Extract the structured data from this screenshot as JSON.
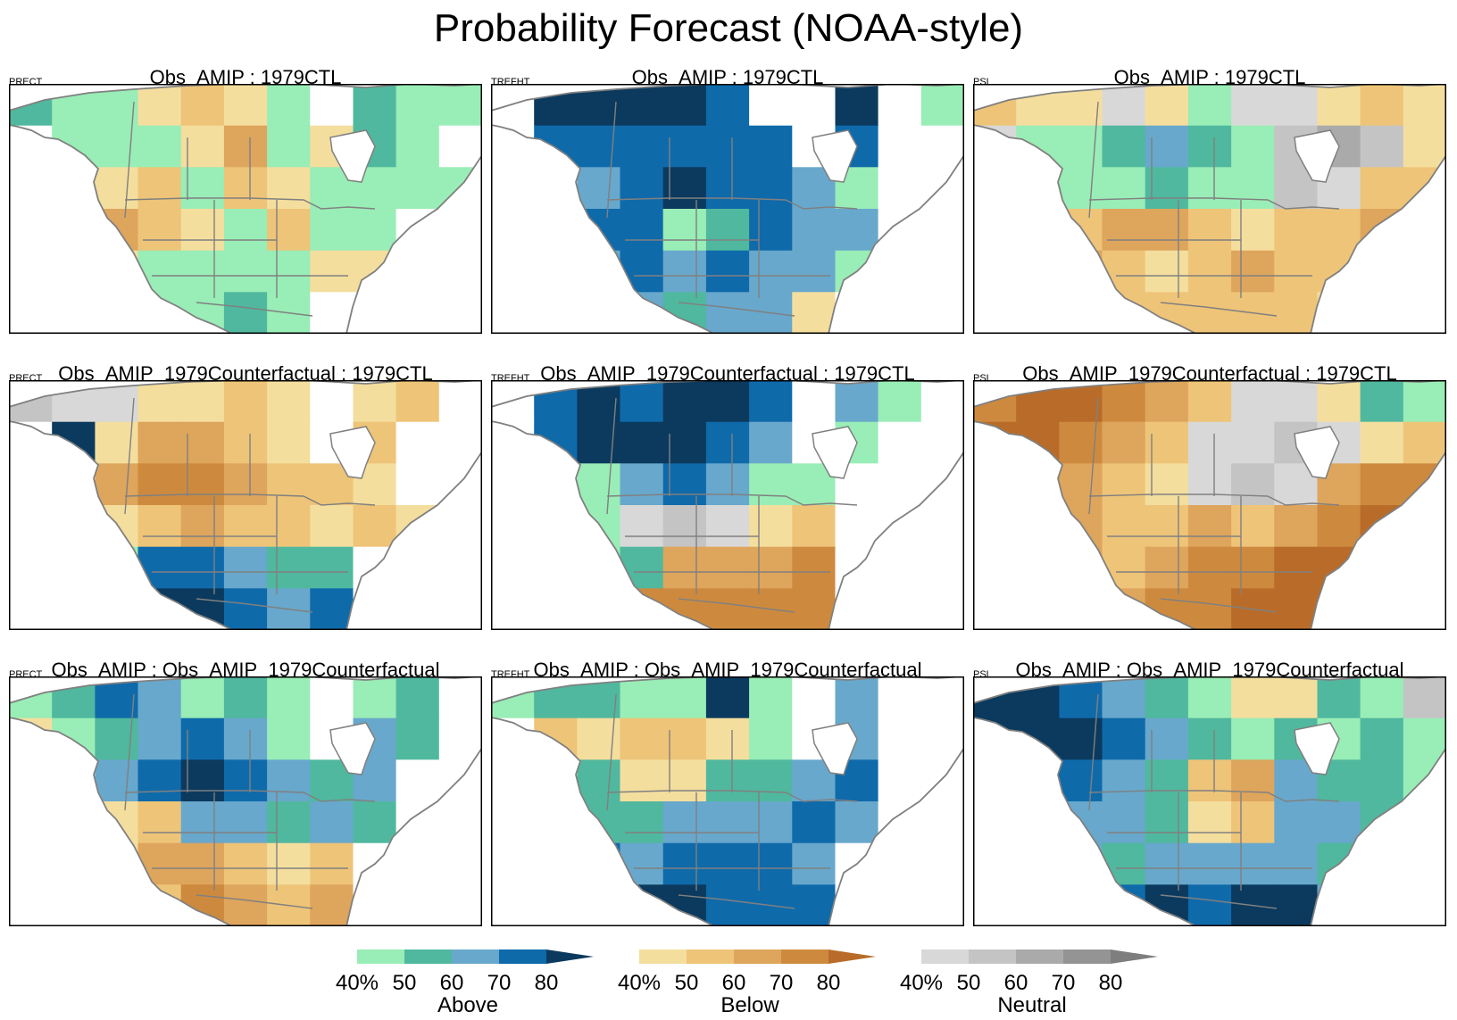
{
  "title": "Probability Forecast (NOAA-style)",
  "colors": {
    "above": [
      "#99EDB6",
      "#50B89E",
      "#68A8CC",
      "#0F6AAA",
      "#0B3A5E"
    ],
    "below": [
      "#F4DE9E",
      "#EEC478",
      "#DEA55C",
      "#CD8A3E",
      "#B96C29"
    ],
    "neutral": [
      "#D8D8D8",
      "#C4C4C4",
      "#AAAAAA",
      "#949494",
      "#7E7E7E"
    ],
    "land": "#ffffff",
    "border": "#808080",
    "frame": "#000000"
  },
  "panels": [
    {
      "title": "Obs_AMIP : 1979CTL",
      "variable": "PRECT",
      "field": [
        [
          2,
          1,
          1,
          6,
          7,
          6,
          1,
          0,
          2,
          1,
          1
        ],
        [
          0,
          1,
          1,
          1,
          6,
          8,
          1,
          6,
          2,
          1,
          0
        ],
        [
          0,
          6,
          6,
          7,
          1,
          7,
          6,
          1,
          1,
          1,
          1
        ],
        [
          0,
          0,
          8,
          7,
          6,
          1,
          7,
          1,
          1,
          0,
          0
        ],
        [
          0,
          0,
          6,
          1,
          1,
          1,
          1,
          6,
          6,
          0,
          0
        ],
        [
          0,
          0,
          0,
          1,
          1,
          2,
          1,
          0,
          0,
          0,
          0
        ]
      ]
    },
    {
      "title": "Obs_AMIP : 1979CTL",
      "variable": "TREFHT",
      "field": [
        [
          0,
          5,
          5,
          5,
          5,
          4,
          0,
          0,
          5,
          0,
          1
        ],
        [
          0,
          4,
          4,
          4,
          4,
          4,
          4,
          0,
          4,
          0,
          0
        ],
        [
          0,
          0,
          3,
          4,
          5,
          4,
          4,
          3,
          1,
          0,
          0
        ],
        [
          0,
          0,
          4,
          4,
          1,
          2,
          4,
          3,
          3,
          0,
          0
        ],
        [
          0,
          0,
          3,
          4,
          3,
          4,
          3,
          3,
          1,
          0,
          0
        ],
        [
          0,
          0,
          0,
          3,
          2,
          3,
          3,
          6,
          0,
          0,
          0
        ]
      ]
    },
    {
      "title": "Obs_AMIP : 1979CTL",
      "variable": "PSL",
      "field": [
        [
          7,
          6,
          6,
          11,
          6,
          1,
          11,
          11,
          6,
          7,
          6
        ],
        [
          11,
          1,
          1,
          2,
          3,
          2,
          1,
          12,
          13,
          12,
          6
        ],
        [
          12,
          11,
          1,
          1,
          2,
          1,
          1,
          12,
          11,
          7,
          7
        ],
        [
          7,
          7,
          7,
          8,
          8,
          7,
          6,
          7,
          7,
          8,
          7
        ],
        [
          7,
          8,
          8,
          7,
          6,
          7,
          8,
          7,
          7,
          7,
          8
        ],
        [
          7,
          7,
          7,
          7,
          7,
          7,
          7,
          7,
          6,
          7,
          7
        ]
      ]
    },
    {
      "title": "Obs_AMIP_1979Counterfactual : 1979CTL",
      "variable": "PRECT",
      "field": [
        [
          12,
          11,
          11,
          6,
          6,
          7,
          6,
          0,
          6,
          7,
          0
        ],
        [
          0,
          5,
          6,
          8,
          8,
          7,
          6,
          0,
          7,
          0,
          0
        ],
        [
          0,
          0,
          8,
          9,
          9,
          8,
          7,
          7,
          6,
          0,
          0
        ],
        [
          0,
          0,
          6,
          7,
          8,
          7,
          7,
          6,
          7,
          6,
          0
        ],
        [
          0,
          0,
          1,
          4,
          4,
          3,
          2,
          2,
          0,
          0,
          0
        ],
        [
          0,
          0,
          0,
          5,
          5,
          4,
          3,
          4,
          0,
          0,
          0
        ]
      ]
    },
    {
      "title": "Obs_AMIP_1979Counterfactual : 1979CTL",
      "variable": "TREFHT",
      "field": [
        [
          0,
          4,
          5,
          4,
          5,
          5,
          4,
          0,
          3,
          1,
          0
        ],
        [
          0,
          4,
          5,
          5,
          5,
          4,
          3,
          0,
          1,
          0,
          0
        ],
        [
          0,
          0,
          1,
          3,
          4,
          3,
          1,
          1,
          0,
          0,
          0
        ],
        [
          0,
          0,
          1,
          11,
          12,
          11,
          6,
          7,
          0,
          0,
          0
        ],
        [
          0,
          0,
          1,
          2,
          8,
          8,
          8,
          9,
          0,
          0,
          0
        ],
        [
          0,
          0,
          0,
          9,
          9,
          9,
          9,
          9,
          0,
          0,
          0
        ]
      ]
    },
    {
      "title": "Obs_AMIP_1979Counterfactual : 1979CTL",
      "variable": "PSL",
      "field": [
        [
          9,
          10,
          10,
          9,
          8,
          7,
          11,
          11,
          6,
          2,
          1
        ],
        [
          10,
          10,
          9,
          8,
          7,
          11,
          11,
          12,
          11,
          6,
          7
        ],
        [
          10,
          9,
          8,
          7,
          6,
          11,
          12,
          11,
          8,
          9,
          9
        ],
        [
          10,
          9,
          8,
          7,
          7,
          8,
          7,
          8,
          9,
          10,
          10
        ],
        [
          9,
          8,
          8,
          7,
          8,
          9,
          9,
          10,
          10,
          10,
          10
        ],
        [
          9,
          8,
          8,
          8,
          9,
          9,
          10,
          10,
          10,
          10,
          9
        ]
      ]
    },
    {
      "title": "Obs_AMIP : Obs_AMIP_1979Counterfactual",
      "variable": "PRECT",
      "field": [
        [
          1,
          2,
          4,
          3,
          1,
          2,
          1,
          0,
          1,
          2,
          0
        ],
        [
          6,
          1,
          2,
          3,
          4,
          3,
          1,
          0,
          3,
          2,
          0
        ],
        [
          0,
          0,
          3,
          4,
          5,
          4,
          3,
          2,
          3,
          0,
          0
        ],
        [
          0,
          0,
          6,
          7,
          3,
          3,
          2,
          3,
          2,
          0,
          0
        ],
        [
          0,
          0,
          6,
          8,
          8,
          7,
          6,
          7,
          0,
          0,
          0
        ],
        [
          0,
          0,
          0,
          7,
          9,
          8,
          7,
          8,
          0,
          0,
          0
        ]
      ]
    },
    {
      "title": "Obs_AMIP : Obs_AMIP_1979Counterfactual",
      "variable": "TREFHT",
      "field": [
        [
          1,
          2,
          2,
          1,
          1,
          5,
          1,
          0,
          3,
          0,
          0
        ],
        [
          0,
          7,
          6,
          7,
          7,
          6,
          1,
          0,
          3,
          0,
          0
        ],
        [
          0,
          0,
          2,
          6,
          6,
          2,
          2,
          3,
          4,
          0,
          0
        ],
        [
          0,
          0,
          2,
          2,
          3,
          3,
          3,
          4,
          3,
          0,
          0
        ],
        [
          0,
          0,
          4,
          3,
          4,
          4,
          4,
          3,
          0,
          0,
          0
        ],
        [
          0,
          0,
          0,
          5,
          5,
          4,
          4,
          4,
          0,
          0,
          0
        ]
      ]
    },
    {
      "title": "Obs_AMIP : Obs_AMIP_1979Counterfactual",
      "variable": "PSL",
      "field": [
        [
          5,
          5,
          4,
          3,
          2,
          1,
          6,
          6,
          2,
          1,
          12
        ],
        [
          5,
          5,
          5,
          4,
          3,
          2,
          1,
          2,
          1,
          2,
          1
        ],
        [
          5,
          5,
          4,
          3,
          2,
          7,
          8,
          3,
          2,
          2,
          1
        ],
        [
          4,
          4,
          3,
          3,
          2,
          6,
          7,
          3,
          3,
          2,
          2
        ],
        [
          3,
          3,
          3,
          2,
          3,
          3,
          3,
          3,
          2,
          2,
          1
        ],
        [
          1,
          1,
          2,
          4,
          5,
          4,
          5,
          5,
          3,
          1,
          1
        ]
      ]
    }
  ],
  "legends": [
    {
      "name": "Above",
      "ticks": [
        "40%",
        "50",
        "60",
        "70",
        "80"
      ]
    },
    {
      "name": "Below",
      "ticks": [
        "40%",
        "50",
        "60",
        "70",
        "80"
      ]
    },
    {
      "name": "Neutral",
      "ticks": [
        "40%",
        "50",
        "60",
        "70",
        "80"
      ]
    }
  ]
}
